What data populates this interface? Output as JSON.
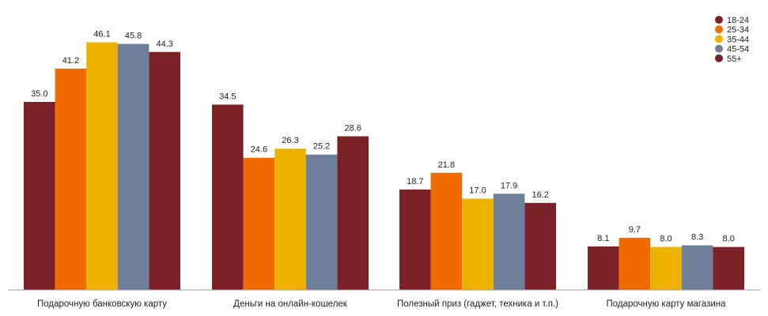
{
  "chart_data": {
    "type": "bar",
    "categories": [
      "Подарочную банковскую карту",
      "Деньги на онлайн-кошелек",
      "Полезный приз (гаджет, техника и т.п.)",
      "Подарочную карту магазина"
    ],
    "series": [
      {
        "name": "18-24",
        "color": "#7a2227",
        "values": [
          35.0,
          34.5,
          18.7,
          8.1
        ]
      },
      {
        "name": "25-34",
        "color": "#ef6b00",
        "values": [
          41.2,
          24.6,
          21.8,
          9.7
        ]
      },
      {
        "name": "35-44",
        "color": "#edb200",
        "values": [
          46.1,
          26.3,
          17.0,
          8.0
        ]
      },
      {
        "name": "45-54",
        "color": "#6e7f9b",
        "values": [
          45.8,
          25.2,
          17.9,
          8.3
        ]
      },
      {
        "name": "55+",
        "color": "#7a2227",
        "values": [
          44.3,
          28.6,
          16.2,
          8.0
        ]
      }
    ],
    "value_labels": [
      [
        "35.0",
        "34.5",
        "18.7",
        "8.1"
      ],
      [
        "41.2",
        "24.6",
        "21.8",
        "9.7"
      ],
      [
        "46.1",
        "26.3",
        "17.0",
        "8.0"
      ],
      [
        "45.8",
        "25.2",
        "17.9",
        "8.3"
      ],
      [
        "44.3",
        "28.6",
        "16.2",
        "8.0"
      ]
    ],
    "ylim": [
      0,
      50
    ],
    "grid": false,
    "legend_position": "top-right",
    "title": "",
    "xlabel": "",
    "ylabel": ""
  }
}
